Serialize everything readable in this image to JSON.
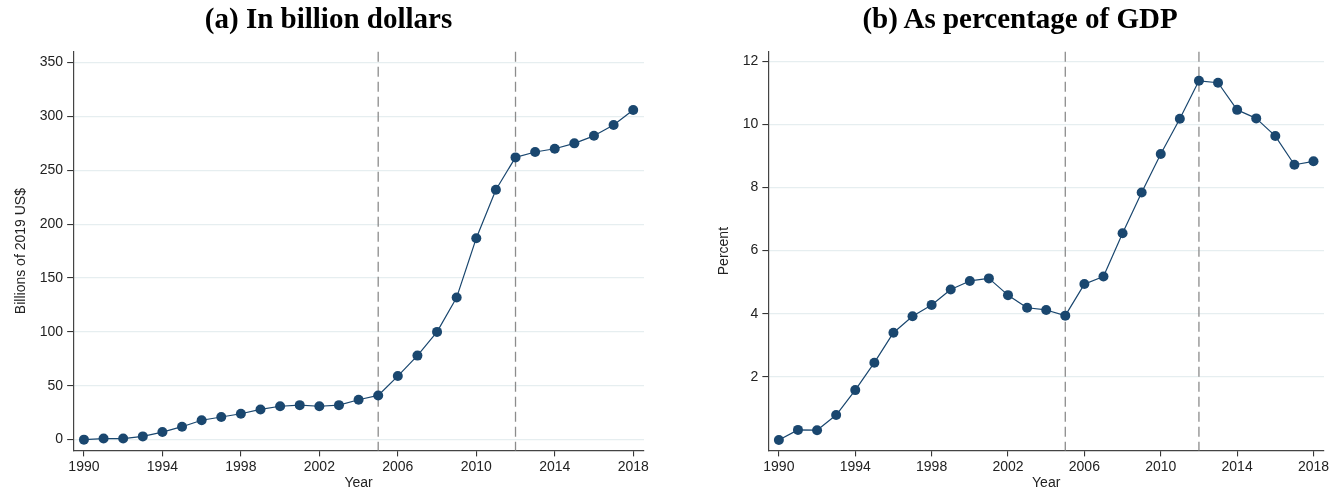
{
  "chart_data": [
    {
      "type": "line",
      "title": "(a) In billion dollars",
      "xlabel": "Year",
      "ylabel": "Billions of 2019 US$",
      "x": [
        1990,
        1991,
        1992,
        1993,
        1994,
        1995,
        1996,
        1997,
        1998,
        1999,
        2000,
        2001,
        2002,
        2003,
        2004,
        2005,
        2006,
        2007,
        2008,
        2009,
        2010,
        2011,
        2012,
        2013,
        2014,
        2015,
        2016,
        2017,
        2018
      ],
      "series": [
        {
          "color": "#1a476f",
          "values": [
            0,
            1,
            1,
            3,
            7,
            12,
            18,
            21,
            24,
            28,
            31,
            32,
            31,
            32,
            37,
            41,
            59,
            78,
            100,
            132,
            187,
            232,
            262,
            267,
            270,
            275,
            282,
            292,
            306
          ]
        }
      ],
      "xlim": [
        1989.45,
        2018.55
      ],
      "xticks": [
        1990,
        1994,
        1998,
        2002,
        2006,
        2010,
        2014,
        2018
      ],
      "ylim": [
        -10,
        360
      ],
      "yticks": [
        0,
        50,
        100,
        150,
        200,
        250,
        300,
        350
      ],
      "grid": "y",
      "marker": "circle",
      "ref_lines": [
        {
          "axis": "x",
          "value": 2005,
          "color": "#8c8c8c",
          "line_style": "dashed"
        },
        {
          "axis": "x",
          "value": 2012,
          "color": "#8c8c8c",
          "line_style": "dashed"
        }
      ]
    },
    {
      "type": "line",
      "title": "(b) As percentage of GDP",
      "xlabel": "Year",
      "ylabel": "Percent",
      "x": [
        1990,
        1991,
        1992,
        1993,
        1994,
        1995,
        1996,
        1997,
        1998,
        1999,
        2000,
        2001,
        2002,
        2003,
        2004,
        2005,
        2006,
        2007,
        2008,
        2009,
        2010,
        2011,
        2012,
        2013,
        2014,
        2015,
        2016,
        2017,
        2018
      ],
      "series": [
        {
          "color": "#1a476f",
          "values": [
            0,
            0.32,
            0.31,
            0.79,
            1.58,
            2.45,
            3.4,
            3.92,
            4.28,
            4.77,
            5.04,
            5.12,
            4.59,
            4.19,
            4.12,
            3.94,
            4.94,
            5.18,
            6.55,
            7.84,
            9.06,
            10.18,
            11.38,
            11.32,
            10.46,
            10.19,
            9.63,
            8.72,
            8.83
          ]
        }
      ],
      "xlim": [
        1989.45,
        2018.55
      ],
      "xticks": [
        1990,
        1994,
        1998,
        2002,
        2006,
        2010,
        2014,
        2018
      ],
      "ylim": [
        -0.33,
        12.3
      ],
      "yticks": [
        2,
        4,
        6,
        8,
        10,
        12
      ],
      "grid": "y",
      "marker": "circle",
      "ref_lines": [
        {
          "axis": "x",
          "value": 2005,
          "color": "#8c8c8c",
          "line_style": "dashed"
        },
        {
          "axis": "x",
          "value": 2012,
          "color": "#8c8c8c",
          "line_style": "dashed"
        }
      ]
    }
  ]
}
